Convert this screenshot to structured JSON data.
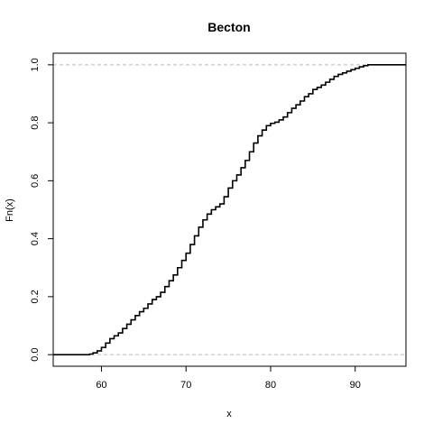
{
  "chart_data": {
    "type": "line",
    "step": true,
    "title": "Becton",
    "xlabel": "x",
    "ylabel": "Fn(x)",
    "xlim": [
      54.3,
      96.0
    ],
    "ylim": [
      -0.04,
      1.04
    ],
    "xticks": [
      60,
      70,
      80,
      90
    ],
    "yticks": [
      0.0,
      0.2,
      0.4,
      0.6,
      0.8,
      1.0
    ],
    "xtick_labels": [
      "60",
      "70",
      "80",
      "90"
    ],
    "ytick_labels": [
      "0.0",
      "0.2",
      "0.4",
      "0.6",
      "0.8",
      "1.0"
    ],
    "reference_lines": [
      0,
      1
    ],
    "colors": {
      "line": "#000000",
      "reference": "#bbbbbb",
      "frame": "#000000"
    },
    "x": [
      54.3,
      58.0,
      58.6,
      59.0,
      59.5,
      60.0,
      60.5,
      61.0,
      61.5,
      62.0,
      62.5,
      63.0,
      63.5,
      64.0,
      64.5,
      65.0,
      65.5,
      66.0,
      66.5,
      67.0,
      67.5,
      68.0,
      68.5,
      69.0,
      69.5,
      70.0,
      70.5,
      71.0,
      71.5,
      72.0,
      72.5,
      73.0,
      73.5,
      74.0,
      74.5,
      75.0,
      75.5,
      76.0,
      76.5,
      77.0,
      77.5,
      78.0,
      78.5,
      79.0,
      79.5,
      80.0,
      80.5,
      81.0,
      81.5,
      82.0,
      82.5,
      83.0,
      83.5,
      84.0,
      84.5,
      85.0,
      85.5,
      86.0,
      86.5,
      87.0,
      87.5,
      88.0,
      88.5,
      89.0,
      89.5,
      90.0,
      90.5,
      91.0,
      91.5,
      92.0,
      93.0,
      96.0
    ],
    "y": [
      0.0,
      0.0,
      0.002,
      0.006,
      0.013,
      0.025,
      0.04,
      0.055,
      0.065,
      0.075,
      0.09,
      0.105,
      0.12,
      0.135,
      0.148,
      0.16,
      0.175,
      0.19,
      0.2,
      0.215,
      0.235,
      0.255,
      0.275,
      0.3,
      0.325,
      0.35,
      0.38,
      0.41,
      0.44,
      0.465,
      0.485,
      0.5,
      0.51,
      0.52,
      0.545,
      0.575,
      0.6,
      0.62,
      0.645,
      0.67,
      0.7,
      0.73,
      0.755,
      0.775,
      0.79,
      0.798,
      0.802,
      0.81,
      0.82,
      0.835,
      0.85,
      0.862,
      0.875,
      0.89,
      0.9,
      0.915,
      0.922,
      0.93,
      0.94,
      0.95,
      0.96,
      0.967,
      0.972,
      0.978,
      0.983,
      0.988,
      0.993,
      0.997,
      1.0,
      1.0,
      1.0,
      1.0
    ]
  }
}
